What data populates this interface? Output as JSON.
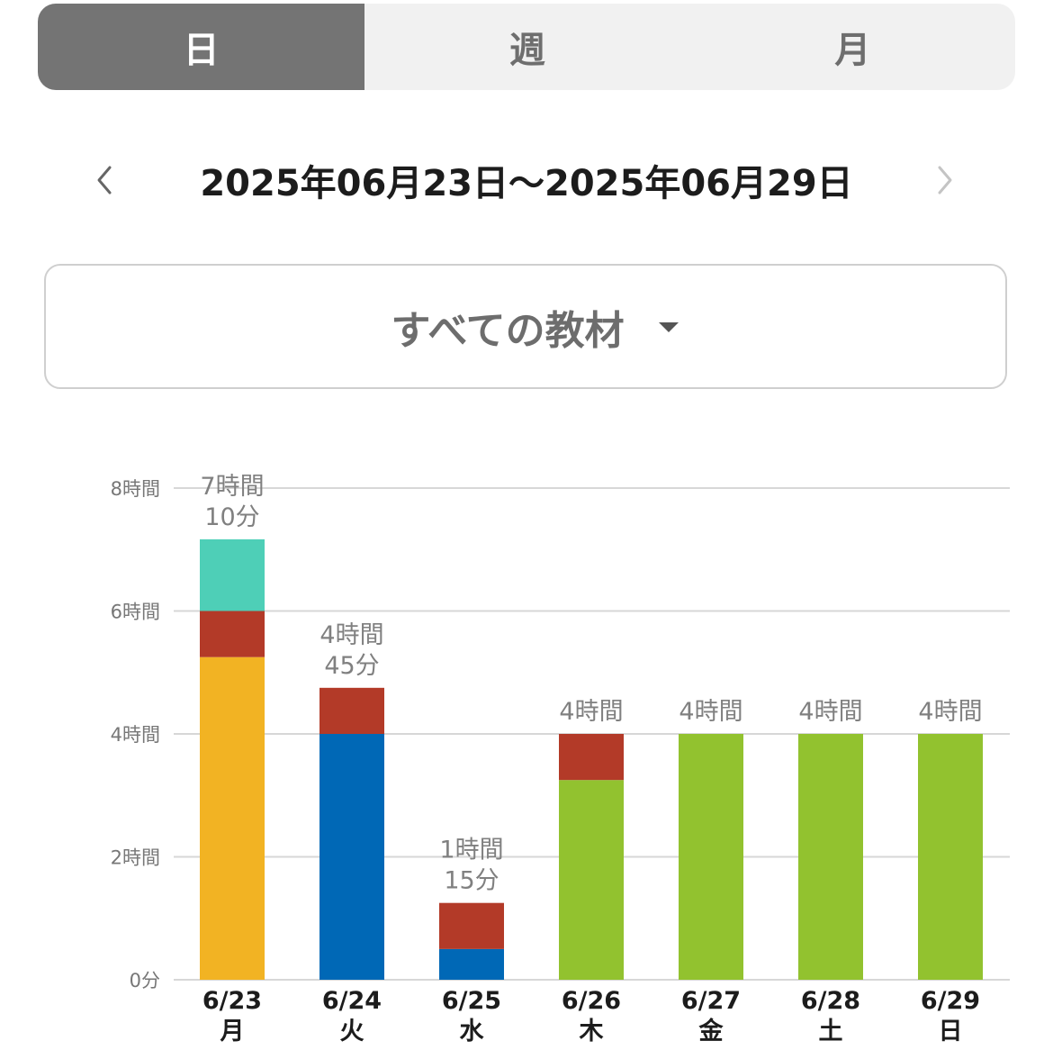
{
  "tabs": [
    {
      "label": "日",
      "active": true
    },
    {
      "label": "週",
      "active": false
    },
    {
      "label": "月",
      "active": false
    }
  ],
  "date_range": "2025年06月23日〜2025年06月29日",
  "nav": {
    "prev_icon": "chevron-left-icon",
    "next_icon": "chevron-right-icon"
  },
  "material_select": {
    "selected": "すべての教材",
    "icon": "caret-down-icon"
  },
  "colors": {
    "teal": "#4ecfb7",
    "red": "#b33a28",
    "yellow": "#f2b323",
    "blue": "#0068b6",
    "green": "#92c22f",
    "grid": "#d7d7d7",
    "axis_text": "#777777",
    "value_text": "#808080",
    "category_text": "#1c1c1c"
  },
  "chart_data": {
    "type": "bar",
    "stacked": true,
    "unit": "hours",
    "y_ticks": [
      {
        "value": 0,
        "label": "0分"
      },
      {
        "value": 2,
        "label": "2時間"
      },
      {
        "value": 4,
        "label": "4時間"
      },
      {
        "value": 6,
        "label": "6時間"
      },
      {
        "value": 8,
        "label": "8時間"
      }
    ],
    "ylim": [
      0,
      8
    ],
    "grid": true,
    "categories": [
      {
        "date": "6/23",
        "weekday": "月"
      },
      {
        "date": "6/24",
        "weekday": "火"
      },
      {
        "date": "6/25",
        "weekday": "水"
      },
      {
        "date": "6/26",
        "weekday": "木"
      },
      {
        "date": "6/27",
        "weekday": "金"
      },
      {
        "date": "6/28",
        "weekday": "土"
      },
      {
        "date": "6/29",
        "weekday": "日"
      }
    ],
    "series": [
      {
        "color": "yellow",
        "values": [
          5.25,
          0,
          0,
          0,
          0,
          0,
          0
        ]
      },
      {
        "color": "blue",
        "values": [
          0,
          4,
          0.5,
          0,
          0,
          0,
          0
        ]
      },
      {
        "color": "green",
        "values": [
          0,
          0,
          0,
          3.25,
          4,
          4,
          4
        ]
      },
      {
        "color": "red",
        "values": [
          0.75,
          0.75,
          0.75,
          0.75,
          0,
          0,
          0
        ]
      },
      {
        "color": "teal",
        "values": [
          1.1667,
          0,
          0,
          0,
          0,
          0,
          0
        ]
      }
    ],
    "totals": [
      {
        "hours": 7.1667,
        "label": [
          "7時間",
          "10分"
        ]
      },
      {
        "hours": 4.75,
        "label": [
          "4時間",
          "45分"
        ]
      },
      {
        "hours": 1.25,
        "label": [
          "1時間",
          "15分"
        ]
      },
      {
        "hours": 4,
        "label": [
          "4時間"
        ]
      },
      {
        "hours": 4,
        "label": [
          "4時間"
        ]
      },
      {
        "hours": 4,
        "label": [
          "4時間"
        ]
      },
      {
        "hours": 4,
        "label": [
          "4時間"
        ]
      }
    ]
  }
}
